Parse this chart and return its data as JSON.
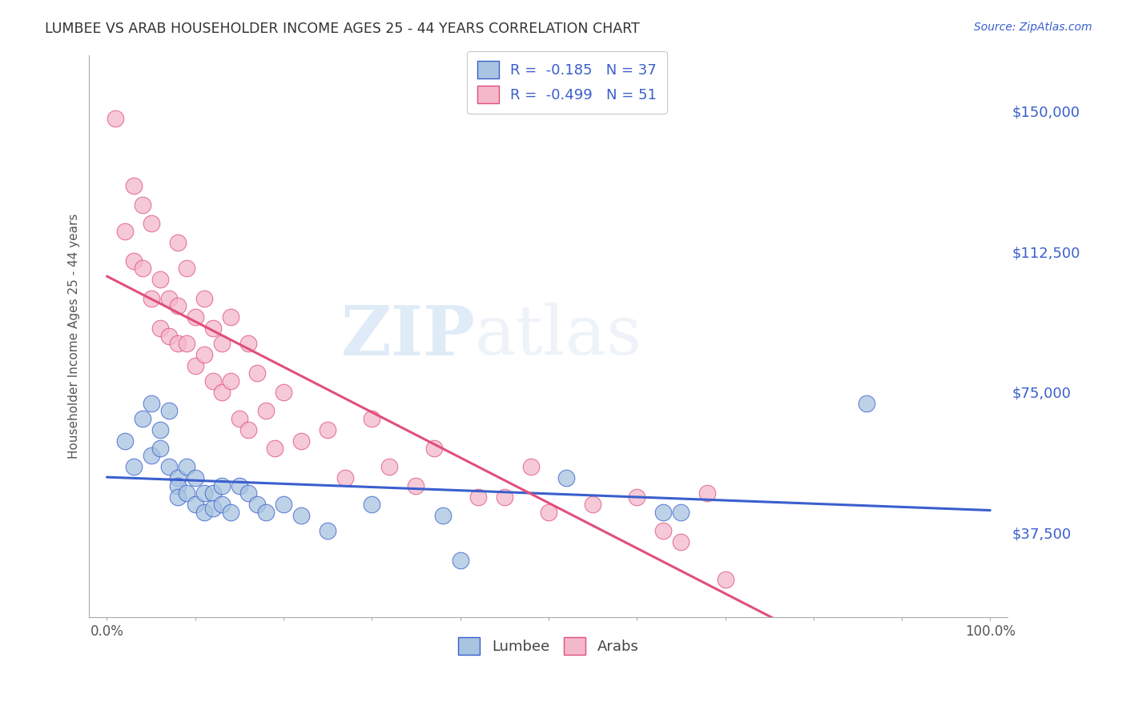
{
  "title": "LUMBEE VS ARAB HOUSEHOLDER INCOME AGES 25 - 44 YEARS CORRELATION CHART",
  "source": "Source: ZipAtlas.com",
  "ylabel": "Householder Income Ages 25 - 44 years",
  "xlim": [
    -0.02,
    1.02
  ],
  "ylim": [
    15000,
    165000
  ],
  "yticks": [
    37500,
    75000,
    112500,
    150000
  ],
  "ytick_labels": [
    "$37,500",
    "$75,000",
    "$112,500",
    "$150,000"
  ],
  "lumbee_color": "#a8c4e0",
  "arab_color": "#f4b8cb",
  "lumbee_line_color": "#3A5FCD",
  "arab_line_color": "#E0507A",
  "lumbee_R": -0.185,
  "lumbee_N": 37,
  "arab_R": -0.499,
  "arab_N": 51,
  "background_color": "#ffffff",
  "grid_color": "#cccccc",
  "lumbee_x": [
    0.02,
    0.03,
    0.04,
    0.05,
    0.05,
    0.06,
    0.06,
    0.07,
    0.07,
    0.08,
    0.08,
    0.08,
    0.09,
    0.09,
    0.1,
    0.1,
    0.11,
    0.11,
    0.12,
    0.12,
    0.13,
    0.13,
    0.14,
    0.15,
    0.16,
    0.17,
    0.18,
    0.2,
    0.22,
    0.25,
    0.3,
    0.38,
    0.4,
    0.52,
    0.63,
    0.65,
    0.86
  ],
  "lumbee_y": [
    62000,
    55000,
    68000,
    58000,
    72000,
    60000,
    65000,
    70000,
    55000,
    52000,
    50000,
    47000,
    55000,
    48000,
    52000,
    45000,
    48000,
    43000,
    48000,
    44000,
    50000,
    45000,
    43000,
    50000,
    48000,
    45000,
    43000,
    45000,
    42000,
    38000,
    45000,
    42000,
    30000,
    52000,
    43000,
    43000,
    72000
  ],
  "arab_x": [
    0.01,
    0.02,
    0.03,
    0.03,
    0.04,
    0.04,
    0.05,
    0.05,
    0.06,
    0.06,
    0.07,
    0.07,
    0.08,
    0.08,
    0.08,
    0.09,
    0.09,
    0.1,
    0.1,
    0.11,
    0.11,
    0.12,
    0.12,
    0.13,
    0.13,
    0.14,
    0.14,
    0.15,
    0.16,
    0.16,
    0.17,
    0.18,
    0.19,
    0.2,
    0.22,
    0.25,
    0.27,
    0.3,
    0.32,
    0.35,
    0.37,
    0.42,
    0.45,
    0.48,
    0.5,
    0.55,
    0.6,
    0.63,
    0.65,
    0.68,
    0.7
  ],
  "arab_y": [
    148000,
    118000,
    130000,
    110000,
    125000,
    108000,
    100000,
    120000,
    105000,
    92000,
    100000,
    90000,
    115000,
    98000,
    88000,
    108000,
    88000,
    95000,
    82000,
    100000,
    85000,
    92000,
    78000,
    88000,
    75000,
    95000,
    78000,
    68000,
    88000,
    65000,
    80000,
    70000,
    60000,
    75000,
    62000,
    65000,
    52000,
    68000,
    55000,
    50000,
    60000,
    47000,
    47000,
    55000,
    43000,
    45000,
    47000,
    38000,
    35000,
    48000,
    25000
  ]
}
